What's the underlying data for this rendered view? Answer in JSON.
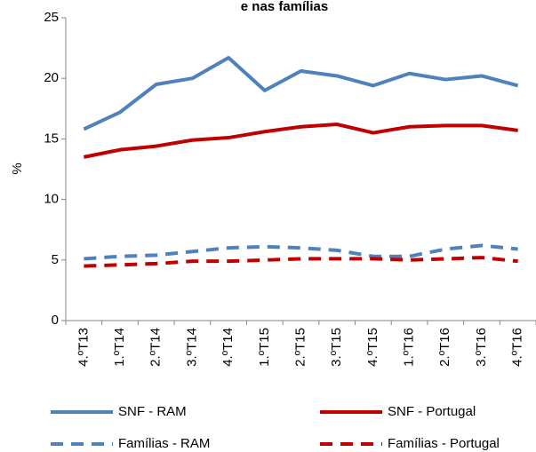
{
  "chart_data": {
    "type": "line",
    "title": "e nas famílias",
    "y_label": "%",
    "categories": [
      "4.ºT13",
      "1.ºT14",
      "2.ºT14",
      "3.ºT14",
      "4.ºT14",
      "1.ºT15",
      "2.ºT15",
      "3.ºT15",
      "4.ºT15",
      "1.ºT16",
      "2.ºT16",
      "3.ºT16",
      "4.ºT16"
    ],
    "series": [
      {
        "name": "SNF - RAM",
        "color": "#4f81bd",
        "dashed": false,
        "values": [
          15.8,
          17.2,
          19.5,
          20.0,
          21.7,
          19.0,
          20.6,
          20.2,
          19.4,
          20.4,
          19.9,
          20.2,
          19.4
        ]
      },
      {
        "name": "SNF - Portugal",
        "color": "#c00000",
        "dashed": false,
        "values": [
          13.5,
          14.1,
          14.4,
          14.9,
          15.1,
          15.6,
          16.0,
          16.2,
          15.5,
          16.0,
          16.1,
          16.1,
          15.7
        ]
      },
      {
        "name": "Famílias - RAM",
        "color": "#4f81bd",
        "dashed": true,
        "values": [
          5.1,
          5.3,
          5.4,
          5.7,
          6.0,
          6.1,
          6.0,
          5.8,
          5.3,
          5.3,
          5.9,
          6.2,
          5.9
        ]
      },
      {
        "name": "Famílias - Portugal",
        "color": "#c00000",
        "dashed": true,
        "values": [
          4.5,
          4.6,
          4.7,
          4.9,
          4.9,
          5.0,
          5.1,
          5.1,
          5.1,
          5.0,
          5.1,
          5.2,
          4.9
        ]
      }
    ],
    "ylim": [
      0,
      25
    ],
    "yticks": [
      0,
      5,
      10,
      15,
      20,
      25
    ],
    "grid": false,
    "legend": "bottom"
  }
}
